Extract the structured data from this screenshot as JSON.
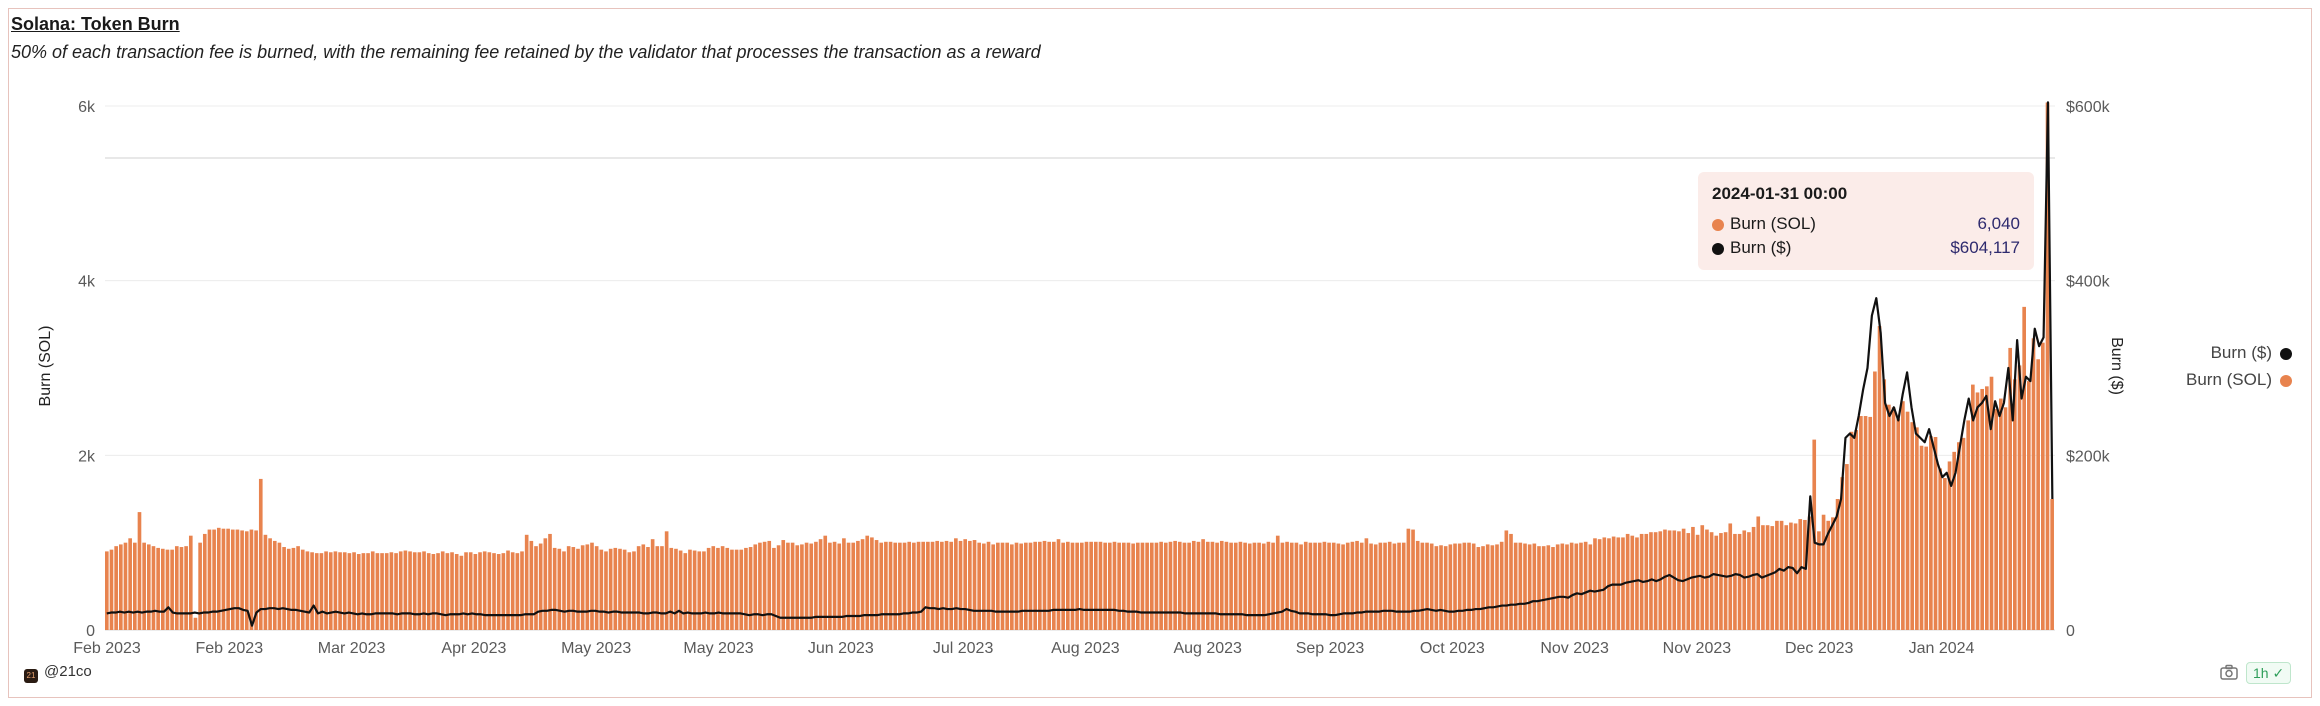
{
  "header": {
    "title": "Solana: Token Burn",
    "subtitle": "50% of each transaction fee is burned, with the remaining fee retained by the validator that processes the transaction as a reward"
  },
  "tooltip": {
    "date": "2024-01-31 00:00",
    "rows": [
      {
        "label": "Burn (SOL)",
        "value": "6,040",
        "color": "#e8834e"
      },
      {
        "label": "Burn ($)",
        "value": "$604,117",
        "color": "#111111"
      }
    ]
  },
  "legend": [
    {
      "label": "Burn ($)",
      "color": "#111111"
    },
    {
      "label": "Burn (SOL)",
      "color": "#e8834e"
    }
  ],
  "footer": {
    "brand": "@21co",
    "interval": "1h"
  },
  "chart_data": {
    "type": "bar+line",
    "title": "Solana: Token Burn",
    "x_tick_labels": [
      "Feb 2023",
      "Feb 2023",
      "Mar 2023",
      "Apr 2023",
      "May 2023",
      "May 2023",
      "Jun 2023",
      "Jul 2023",
      "Aug 2023",
      "Aug 2023",
      "Sep 2023",
      "Oct 2023",
      "Nov 2023",
      "Nov 2023",
      "Dec 2023",
      "Jan 2024"
    ],
    "y_left": {
      "label": "Burn (SOL)",
      "ticks": [
        "0",
        "2k",
        "4k",
        "6k"
      ],
      "range": [
        0,
        6000
      ]
    },
    "y_right": {
      "label": "Burn ($)",
      "ticks": [
        "0",
        "$200k",
        "$400k",
        "$600k"
      ],
      "range": [
        0,
        600000
      ]
    },
    "grid": true,
    "legend_position": "right",
    "series": [
      {
        "name": "Burn (SOL)",
        "kind": "bar",
        "color": "#e8834e",
        "values": [
          900,
          920,
          960,
          980,
          1000,
          1050,
          1000,
          1350,
          1000,
          980,
          960,
          940,
          930,
          920,
          920,
          960,
          950,
          960,
          1080,
          140,
          1000,
          1100,
          1150,
          1150,
          1170,
          1160,
          1160,
          1150,
          1150,
          1140,
          1130,
          1150,
          1140,
          1730,
          1090,
          1050,
          1020,
          1000,
          950,
          930,
          940,
          960,
          920,
          900,
          890,
          880,
          880,
          900,
          890,
          900,
          890,
          890,
          880,
          890,
          870,
          880,
          880,
          900,
          880,
          880,
          880,
          890,
          880,
          900,
          910,
          900,
          890,
          890,
          900,
          880,
          870,
          880,
          900,
          880,
          890,
          870,
          850,
          890,
          890,
          870,
          890,
          900,
          890,
          880,
          870,
          880,
          910,
          890,
          880,
          900,
          1090,
          1020,
          960,
          990,
          1050,
          1100,
          940,
          930,
          900,
          960,
          950,
          930,
          970,
          980,
          1000,
          960,
          920,
          900,
          930,
          940,
          930,
          920,
          890,
          900,
          960,
          980,
          950,
          1040,
          960,
          960,
          1130,
          940,
          930,
          910,
          880,
          920,
          910,
          900,
          900,
          940,
          960,
          940,
          960,
          940,
          920,
          920,
          920,
          940,
          950,
          980,
          1000,
          1010,
          1020,
          940,
          970,
          1030,
          1000,
          1000,
          970,
          980,
          1000,
          990,
          1010,
          1040,
          1080,
          1000,
          1010,
          990,
          1050,
          1000,
          1000,
          1020,
          1040,
          1080,
          1060,
          1030,
          1000,
          1010,
          1010,
          1000,
          1000,
          1000,
          1010,
          1000,
          1010,
          1010,
          1010,
          1010,
          1020,
          1010,
          1020,
          1010,
          1050,
          1020,
          1040,
          1020,
          1030,
          1000,
          990,
          1010,
          980,
          1000,
          1000,
          1000,
          980,
          1000,
          990,
          1000,
          1000,
          1010,
          1010,
          1020,
          1010,
          1010,
          1040,
          1000,
          1010,
          1000,
          1000,
          1000,
          1010,
          1010,
          1010,
          1010,
          1000,
          1000,
          1010,
          1000,
          1000,
          1000,
          990,
          1000,
          1000,
          1000,
          1000,
          1000,
          1010,
          1000,
          1010,
          1020,
          1010,
          1000,
          1000,
          1020,
          1010,
          1040,
          1010,
          1010,
          1000,
          1020,
          1010,
          1000,
          1000,
          1010,
          1000,
          990,
          1000,
          1000,
          990,
          1010,
          1000,
          1080,
          1000,
          1010,
          1000,
          1000,
          980,
          1010,
          1000,
          1000,
          1000,
          1010,
          1000,
          1000,
          990,
          980,
          1000,
          1010,
          1020,
          1000,
          1050,
          990,
          980,
          1000,
          1000,
          1010,
          990,
          1000,
          1000,
          1160,
          1150,
          1020,
          1000,
          1000,
          990,
          960,
          970,
          960,
          980,
          990,
          990,
          1000,
          1000,
          990,
          950,
          960,
          980,
          970,
          980,
          1010,
          1140,
          1100,
          1000,
          1000,
          990,
          980,
          990,
          960,
          960,
          970,
          950,
          980,
          990,
          980,
          1000,
          990,
          1000,
          1010,
          980,
          1050,
          1040,
          1060,
          1050,
          1070,
          1060,
          1060,
          1100,
          1080,
          1060,
          1100,
          1100,
          1120,
          1120,
          1130,
          1150,
          1140,
          1140,
          1130,
          1160,
          1110,
          1180,
          1090,
          1200,
          1150,
          1120,
          1080,
          1110,
          1120,
          1220,
          1100,
          1100,
          1140,
          1120,
          1180,
          1300,
          1200,
          1200,
          1190,
          1250,
          1250,
          1200,
          1230,
          1220,
          1270,
          1260,
          1300,
          2180,
          1130,
          1320,
          1250,
          1290,
          1500,
          1750,
          1900,
          2270,
          2290,
          2450,
          2450,
          2440,
          2960,
          3480,
          2870,
          2580,
          2550,
          2420,
          2620,
          2500,
          2380,
          2320,
          2110,
          2100,
          2220,
          2210,
          1850,
          1740,
          1930,
          2040,
          2150,
          2200,
          2400,
          2810,
          2720,
          2760,
          2790,
          2900,
          2530,
          2650,
          2550,
          3230,
          2870,
          3030,
          3700,
          2850,
          3340,
          3100,
          3290,
          6040,
          1500
        ]
      },
      {
        "name": "Burn ($)",
        "kind": "line",
        "color": "#111111",
        "values": [
          19000,
          20000,
          20000,
          21000,
          20000,
          21000,
          20000,
          21000,
          20000,
          21000,
          21000,
          22000,
          21000,
          21000,
          26000,
          20000,
          19000,
          19000,
          19000,
          19000,
          20000,
          19000,
          20000,
          20000,
          21000,
          21000,
          22000,
          23000,
          24000,
          25000,
          25000,
          23000,
          22000,
          5000,
          20000,
          24000,
          24000,
          25000,
          25000,
          24000,
          25000,
          24000,
          23000,
          23000,
          22000,
          21000,
          20000,
          28000,
          19000,
          21000,
          19000,
          20000,
          21000,
          20000,
          19000,
          20000,
          19000,
          18000,
          19000,
          18000,
          18000,
          19000,
          19000,
          19000,
          19000,
          19000,
          18000,
          19000,
          19000,
          19000,
          18000,
          18000,
          19000,
          18000,
          19000,
          19000,
          18000,
          17000,
          18000,
          18000,
          18000,
          19000,
          18000,
          19000,
          18000,
          18000,
          17000,
          17000,
          17000,
          17000,
          17000,
          17000,
          17000,
          17000,
          17000,
          18000,
          18000,
          18000,
          21000,
          22000,
          22000,
          23000,
          23000,
          22000,
          21000,
          22000,
          22000,
          21000,
          21000,
          21000,
          22000,
          22000,
          21000,
          21000,
          20000,
          21000,
          21000,
          20000,
          20000,
          20000,
          20000,
          20000,
          19000,
          19000,
          20000,
          20000,
          19000,
          19000,
          21000,
          19000,
          22000,
          19000,
          20000,
          19000,
          19000,
          19000,
          20000,
          19000,
          19000,
          20000,
          19000,
          19000,
          19000,
          19000,
          19000,
          18000,
          17000,
          18000,
          18000,
          17000,
          18000,
          18000,
          16000,
          14000,
          14000,
          14000,
          14000,
          14000,
          14000,
          14000,
          14000,
          15000,
          15000,
          15000,
          15000,
          15000,
          15000,
          15000,
          16000,
          16000,
          16000,
          16000,
          17000,
          17000,
          17000,
          17000,
          18000,
          18000,
          18000,
          18000,
          18000,
          19000,
          19000,
          20000,
          20000,
          21000,
          26000,
          25000,
          25000,
          24000,
          25000,
          24000,
          24000,
          25000,
          24000,
          24000,
          23000,
          22000,
          22000,
          22000,
          22000,
          22000,
          21000,
          21000,
          21000,
          21000,
          21000,
          21000,
          22000,
          22000,
          22000,
          22000,
          22000,
          22000,
          22000,
          23000,
          23000,
          23000,
          23000,
          23000,
          23000,
          24000,
          23000,
          23000,
          23000,
          23000,
          23000,
          23000,
          23000,
          23000,
          22000,
          22000,
          21000,
          21000,
          21000,
          20000,
          20000,
          20000,
          20000,
          20000,
          20000,
          20000,
          20000,
          20000,
          20000,
          19000,
          19000,
          19000,
          19000,
          19000,
          19000,
          19000,
          19000,
          18000,
          18000,
          18000,
          18000,
          18000,
          18000,
          17000,
          17000,
          17000,
          17000,
          17000,
          18000,
          19000,
          20000,
          21000,
          24000,
          22000,
          21000,
          19000,
          19000,
          19000,
          18000,
          18000,
          18000,
          18000,
          17000,
          17000,
          18000,
          19000,
          19000,
          19000,
          20000,
          20000,
          21000,
          21000,
          21000,
          21000,
          22000,
          22000,
          22000,
          21000,
          21000,
          21000,
          21000,
          22000,
          22000,
          23000,
          24000,
          23000,
          22000,
          23000,
          22000,
          21000,
          21000,
          22000,
          22000,
          23000,
          23000,
          24000,
          24000,
          25000,
          26000,
          26000,
          27000,
          28000,
          28000,
          29000,
          29000,
          30000,
          30000,
          31000,
          33000,
          33000,
          34000,
          35000,
          36000,
          37000,
          38000,
          38000,
          37000,
          40000,
          42000,
          41000,
          43000,
          45000,
          44000,
          45000,
          46000,
          50000,
          52000,
          52000,
          52000,
          54000,
          55000,
          56000,
          57000,
          55000,
          56000,
          58000,
          56000,
          58000,
          61000,
          63000,
          60000,
          57000,
          56000,
          58000,
          60000,
          61000,
          62000,
          60000,
          61000,
          64000,
          63000,
          62000,
          61000,
          62000,
          64000,
          63000,
          60000,
          61000,
          63000,
          64000,
          60000,
          62000,
          64000,
          66000,
          70000,
          68000,
          72000,
          71000,
          65000,
          72000,
          70000,
          153000,
          100000,
          98000,
          98000,
          110000,
          120000,
          130000,
          150000,
          220000,
          225000,
          220000,
          245000,
          275000,
          300000,
          360000,
          380000,
          340000,
          260000,
          245000,
          255000,
          240000,
          270000,
          295000,
          255000,
          225000,
          220000,
          215000,
          230000,
          210000,
          190000,
          175000,
          180000,
          165000,
          180000,
          210000,
          240000,
          265000,
          240000,
          255000,
          260000,
          268000,
          230000,
          262000,
          245000,
          260000,
          300000,
          240000,
          332000,
          265000,
          290000,
          285000,
          345000,
          325000,
          335000,
          604117,
          150000
        ]
      }
    ]
  }
}
